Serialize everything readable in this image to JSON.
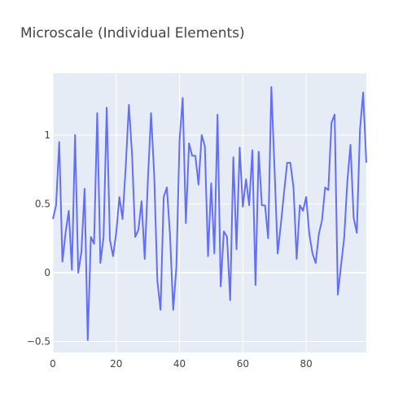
{
  "chart_data": {
    "type": "line",
    "title": "Microscale (Individual Elements)",
    "xlabel": "",
    "ylabel": "",
    "xlim": [
      0,
      99
    ],
    "ylim": [
      -0.58,
      1.45
    ],
    "x_ticks": [
      0,
      20,
      40,
      60,
      80
    ],
    "y_ticks": [
      -0.5,
      0,
      0.5,
      1
    ],
    "grid": true,
    "legend": "none",
    "colors": {
      "line": "#636efa",
      "plot_bg": "#e5ecf6",
      "grid": "#ffffff",
      "text": "#444444"
    },
    "series": [
      {
        "values": [
          0.39,
          0.49,
          0.95,
          0.08,
          0.29,
          0.45,
          0.02,
          1.0,
          0.0,
          0.15,
          0.61,
          -0.49,
          0.26,
          0.21,
          1.16,
          0.07,
          0.26,
          1.2,
          0.24,
          0.12,
          0.29,
          0.55,
          0.39,
          0.77,
          1.22,
          0.86,
          0.26,
          0.31,
          0.52,
          0.1,
          0.67,
          1.16,
          0.71,
          -0.06,
          -0.27,
          0.55,
          0.62,
          0.27,
          -0.27,
          0.04,
          0.96,
          1.27,
          0.36,
          0.94,
          0.85,
          0.85,
          0.64,
          1.0,
          0.92,
          0.12,
          0.65,
          0.14,
          1.15,
          -0.1,
          0.3,
          0.26,
          -0.2,
          0.84,
          0.17,
          0.91,
          0.48,
          0.68,
          0.49,
          0.89,
          -0.09,
          0.88,
          0.49,
          0.49,
          0.25,
          1.35,
          0.76,
          0.14,
          0.35,
          0.58,
          0.8,
          0.8,
          0.62,
          0.1,
          0.49,
          0.45,
          0.55,
          0.28,
          0.14,
          0.07,
          0.28,
          0.38,
          0.62,
          0.6,
          1.09,
          1.15,
          -0.16,
          0.05,
          0.25,
          0.66,
          0.93,
          0.4,
          0.29,
          1.04,
          1.31,
          0.8
        ]
      }
    ]
  }
}
